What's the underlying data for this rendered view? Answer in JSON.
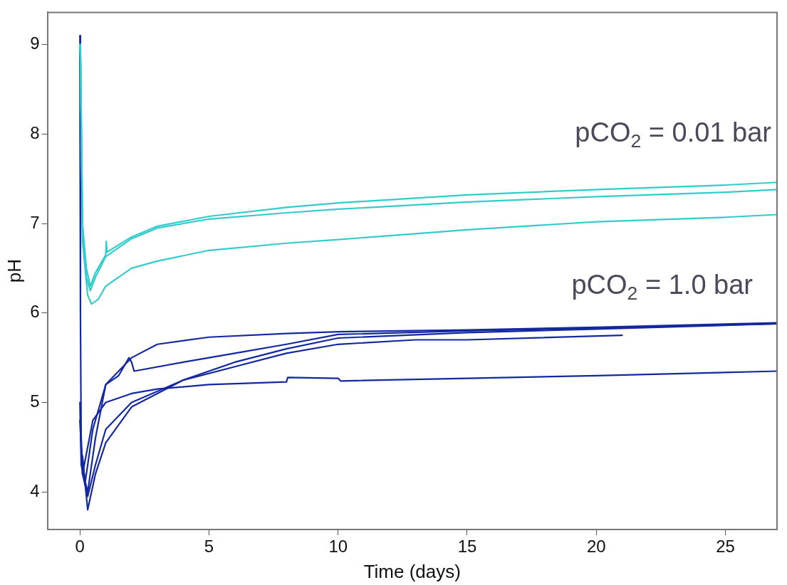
{
  "chart_data": {
    "type": "line",
    "xlabel": "Time (days)",
    "ylabel": "pH",
    "xlim": [
      -1.26,
      27
    ],
    "ylim": [
      3.58,
      9.36
    ],
    "xticks": [
      0,
      5,
      10,
      15,
      20,
      25
    ],
    "yticks": [
      4,
      5,
      6,
      7,
      8,
      9
    ],
    "grid": false,
    "legend": false,
    "marker": "none",
    "line_style": "solid",
    "annotations": [
      "pCO$_{2}$ = 0.01 bar",
      "pCO$_{2}$ = 1.0 bar"
    ],
    "series": [
      {
        "color": "#33cccc",
        "x": [
          0,
          0.02,
          0.1,
          0.25,
          0.4,
          0.6,
          1,
          1.02,
          1.05,
          2,
          3,
          5,
          8,
          10,
          15,
          20,
          25,
          27
        ],
        "values": [
          9.0,
          8.9,
          7.0,
          6.5,
          6.3,
          6.45,
          6.65,
          6.8,
          6.68,
          6.85,
          6.97,
          7.08,
          7.18,
          7.23,
          7.32,
          7.38,
          7.43,
          7.46
        ]
      },
      {
        "color": "#33cccc",
        "x": [
          0,
          0.02,
          0.1,
          0.25,
          0.4,
          0.6,
          1,
          2,
          3,
          5,
          8,
          10,
          15,
          20,
          25,
          27
        ],
        "values": [
          9.0,
          8.9,
          6.9,
          6.4,
          6.25,
          6.4,
          6.63,
          6.83,
          6.95,
          7.05,
          7.12,
          7.16,
          7.24,
          7.3,
          7.35,
          7.38
        ]
      },
      {
        "color": "#33cccc",
        "x": [
          0,
          0.03,
          0.1,
          0.3,
          0.45,
          0.7,
          1,
          2,
          3,
          5,
          8,
          10,
          15,
          20,
          25,
          27
        ],
        "values": [
          9.0,
          8.8,
          6.8,
          6.2,
          6.1,
          6.15,
          6.3,
          6.5,
          6.58,
          6.7,
          6.78,
          6.82,
          6.93,
          7.02,
          7.07,
          7.1
        ]
      },
      {
        "color": "#1428a0",
        "x": [
          0,
          0.02,
          0.05,
          0.2,
          0.5,
          1,
          1.5,
          2,
          3,
          5,
          8,
          10,
          15,
          20,
          27
        ],
        "values": [
          9.1,
          6.0,
          4.5,
          4.1,
          4.7,
          5.2,
          5.35,
          5.5,
          5.65,
          5.73,
          5.77,
          5.79,
          5.81,
          5.84,
          5.89
        ]
      },
      {
        "color": "#1428a0",
        "x": [
          0,
          0.05,
          0.3,
          0.6,
          1,
          1.5,
          1.9,
          2,
          2.1,
          4,
          6,
          8,
          10,
          15,
          20,
          27
        ],
        "values": [
          5.0,
          4.3,
          4.0,
          4.6,
          5.2,
          5.3,
          5.5,
          5.45,
          5.35,
          5.45,
          5.55,
          5.65,
          5.76,
          5.8,
          5.83,
          5.88
        ]
      },
      {
        "color": "#1428a0",
        "x": [
          0,
          0.1,
          0.3,
          0.6,
          1,
          2,
          4,
          6,
          8,
          10,
          13,
          15,
          21
        ],
        "values": [
          4.8,
          4.2,
          3.95,
          4.3,
          4.7,
          5.0,
          5.25,
          5.4,
          5.55,
          5.65,
          5.7,
          5.7,
          5.75
        ]
      },
      {
        "color": "#1428a0",
        "x": [
          0.1,
          0.3,
          0.6,
          1,
          2,
          4,
          6,
          8,
          10,
          15,
          20,
          27
        ],
        "values": [
          4.4,
          3.8,
          4.2,
          4.55,
          4.95,
          5.25,
          5.45,
          5.6,
          5.72,
          5.78,
          5.82,
          5.88
        ]
      },
      {
        "color": "#1428a0",
        "x": [
          0.05,
          0.1,
          0.5,
          1,
          2,
          3,
          5,
          8,
          8.05,
          10,
          10.1,
          15,
          20,
          27
        ],
        "values": [
          4.6,
          4.2,
          4.8,
          5.0,
          5.1,
          5.15,
          5.2,
          5.23,
          5.28,
          5.27,
          5.24,
          5.27,
          5.3,
          5.35
        ]
      }
    ]
  }
}
